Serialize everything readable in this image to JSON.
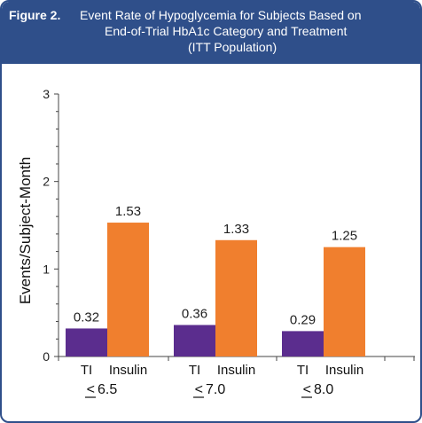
{
  "header": {
    "label": "Figure 2.",
    "title_lines": [
      "Event Rate of Hypoglycemia for Subjects Based on",
      "End-of-Trial HbA1c Category and Treatment",
      "(ITT Population)"
    ]
  },
  "colors": {
    "header_bg": "#2f4f8a",
    "TI": "#5b2d8e",
    "Insulin": "#f07f2e"
  },
  "chart_data": {
    "type": "bar",
    "ylabel": "Events/Subject-Month",
    "ylim": [
      0,
      3
    ],
    "yticks": [
      "0",
      "1",
      "2",
      "3"
    ],
    "grid": false,
    "groups": [
      {
        "label_symbol": "<",
        "label_value": "6.5",
        "bars": [
          {
            "category": "TI",
            "value": 0.32,
            "label": "0.32"
          },
          {
            "category": "Insulin",
            "value": 1.53,
            "label": "1.53"
          }
        ]
      },
      {
        "label_symbol": "<",
        "label_value": "7.0",
        "bars": [
          {
            "category": "TI",
            "value": 0.36,
            "label": "0.36"
          },
          {
            "category": "Insulin",
            "value": 1.33,
            "label": "1.33"
          }
        ]
      },
      {
        "label_symbol": "<",
        "label_value": "8.0",
        "bars": [
          {
            "category": "TI",
            "value": 0.29,
            "label": "0.29"
          },
          {
            "category": "Insulin",
            "value": 1.25,
            "label": "1.25"
          }
        ]
      }
    ]
  }
}
